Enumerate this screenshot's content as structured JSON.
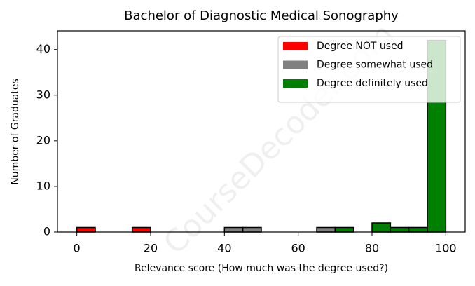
{
  "chart_data": {
    "type": "histogram",
    "title": "Bachelor of Diagnostic Medical Sonography",
    "x_label": "Relevance score (How much was the degree used?)",
    "y_label": "Number of Graduates",
    "watermark": "CourseDecoder.com",
    "bins": [
      0,
      5,
      10,
      15,
      20,
      25,
      30,
      35,
      40,
      45,
      50,
      55,
      60,
      65,
      70,
      75,
      80,
      85,
      90,
      95,
      100
    ],
    "series": [
      {
        "name": "Degree NOT used",
        "color": "#ff0000",
        "values": [
          1,
          0,
          0,
          1,
          0,
          0,
          0,
          0,
          0,
          0,
          0,
          0,
          0,
          0,
          0,
          0,
          0,
          0,
          0,
          0
        ]
      },
      {
        "name": "Degree somewhat used",
        "color": "#808080",
        "values": [
          0,
          0,
          0,
          0,
          0,
          0,
          0,
          0,
          1,
          1,
          0,
          0,
          0,
          1,
          0,
          0,
          0,
          0,
          0,
          0
        ]
      },
      {
        "name": "Degree definitely used",
        "color": "#008000",
        "values": [
          0,
          0,
          0,
          0,
          0,
          0,
          0,
          0,
          0,
          0,
          0,
          0,
          0,
          0,
          1,
          0,
          2,
          1,
          1,
          42
        ]
      }
    ],
    "xlim": [
      -5.25,
      105.25
    ],
    "ylim": [
      0,
      44.1
    ],
    "xticks": [
      0,
      20,
      40,
      60,
      80,
      100
    ],
    "yticks": [
      0,
      10,
      20,
      30,
      40
    ],
    "legend": "upper right"
  }
}
